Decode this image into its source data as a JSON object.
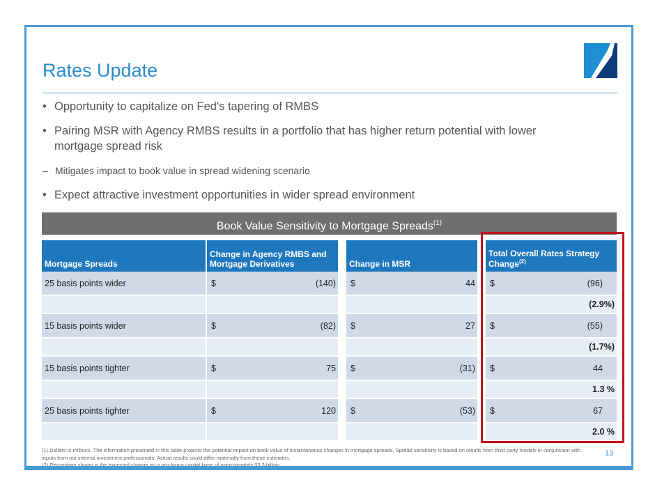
{
  "title": "Rates Update",
  "bullets": [
    {
      "marker": "•",
      "text": "Opportunity to capitalize on Fed's tapering of RMBS"
    },
    {
      "marker": "•",
      "text": "Pairing MSR with Agency RMBS results in a portfolio that has higher return potential with lower mortgage spread risk"
    },
    {
      "marker": "–",
      "text": "Mitigates impact to book value in spread widening scenario"
    },
    {
      "marker": "•",
      "text": "Expect attractive investment opportunities in wider spread environment"
    }
  ],
  "table": {
    "banner": "Book Value Sensitivity to Mortgage Spreads",
    "banner_note": "(1)",
    "headers": [
      "Mortgage Spreads",
      "Change in Agency RMBS and Mortgage Derivatives",
      "Change in MSR",
      "Total Overall Rates Strategy Change"
    ],
    "header_note": "(2)",
    "currency": "$",
    "rows": [
      {
        "label": "25 basis points wider",
        "rmbs": "(140)",
        "msr": "44",
        "total": "(96)",
        "pct": "(2.9%)"
      },
      {
        "label": "15 basis points wider",
        "rmbs": "(82)",
        "msr": "27",
        "total": "(55)",
        "pct": "(1.7%)"
      },
      {
        "label": "15 basis points tighter",
        "rmbs": "75",
        "msr": "(31)",
        "total": "44",
        "pct": "1.3 %"
      },
      {
        "label": "25 basis points tighter",
        "rmbs": "120",
        "msr": "(53)",
        "total": "67",
        "pct": "2.0 %"
      }
    ]
  },
  "footnotes": [
    "(1)  Dollars in millions. The information presented in this table projects the potential impact on book value of instantaneous changes in mortgage spreads. Spread sensitivity is based on results from third party models in conjunction with inputs from our internal investment professionals. Actual results could differ materially from these estimates.",
    "(2)  Percentage shown is the expected change on a pro-forma capital base of approximately $3.3 billion."
  ],
  "page_number": "13",
  "colors": {
    "accent": "#2a8ad0",
    "header": "#1f78be",
    "highlight": "#c0141c"
  }
}
